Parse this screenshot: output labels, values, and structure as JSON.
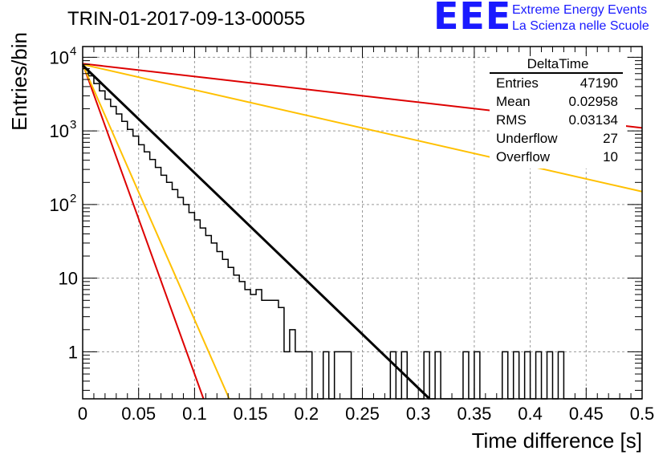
{
  "chart_data": {
    "type": "line",
    "title": "TRIN-01-2017-09-13-00055",
    "xlabel": "Time difference [s]",
    "ylabel": "Entries/bin",
    "xlim": [
      0,
      0.5
    ],
    "ylim": [
      0.23,
      14000
    ],
    "yscale": "log",
    "grid": true,
    "x_ticks": [
      "0",
      "0.05",
      "0.1",
      "0.15",
      "0.2",
      "0.25",
      "0.3",
      "0.35",
      "0.4",
      "0.45",
      "0.5"
    ],
    "y_ticks": [
      {
        "base": "10",
        "exp": "4",
        "value": 10000
      },
      {
        "base": "10",
        "exp": "3",
        "value": 1000
      },
      {
        "base": "10",
        "exp": "2",
        "value": 100
      },
      {
        "base": "10",
        "exp": "",
        "value": 10
      },
      {
        "base": "1",
        "exp": "",
        "value": 1
      }
    ],
    "histogram": {
      "name": "DeltaTime",
      "bin_width": 0.005,
      "values": [
        7000,
        5600,
        4400,
        3500,
        2700,
        2150,
        1700,
        1350,
        1050,
        850,
        650,
        520,
        410,
        320,
        250,
        200,
        160,
        125,
        100,
        78,
        62,
        48,
        38,
        30,
        23,
        18,
        14,
        11,
        9,
        7,
        6,
        7,
        5,
        5,
        5,
        4,
        1,
        2,
        1,
        1,
        1,
        0,
        0,
        1,
        0,
        1,
        1,
        1,
        0,
        0,
        0,
        0,
        0,
        0,
        0,
        1,
        0,
        1,
        0,
        0,
        0,
        1,
        0,
        1,
        0,
        0,
        0,
        0,
        1,
        0,
        1,
        0,
        0,
        0,
        0,
        1,
        0,
        1,
        0,
        1,
        0,
        1,
        0,
        1,
        0,
        1,
        0,
        0,
        0,
        0,
        0,
        0,
        0,
        0,
        0,
        0,
        0,
        0,
        0,
        0
      ]
    },
    "series": [
      {
        "color": "#000000",
        "x": [
          0,
          0.31
        ],
        "y": [
          7800,
          0.23
        ]
      },
      {
        "color": "#dd0000",
        "x": [
          0,
          0.5
        ],
        "y": [
          8200,
          1100
        ]
      },
      {
        "color": "#ffc000",
        "x": [
          0,
          0.5
        ],
        "y": [
          8000,
          150
        ]
      },
      {
        "color": "#dd0000",
        "x": [
          0,
          0.108
        ],
        "y": [
          8200,
          0.23
        ]
      },
      {
        "color": "#ffc000",
        "x": [
          0,
          0.131
        ],
        "y": [
          8000,
          0.23
        ]
      }
    ]
  },
  "stats": {
    "title": "DeltaTime",
    "rows": [
      {
        "label": "Entries",
        "value": "47190"
      },
      {
        "label": "Mean",
        "value": "0.02958"
      },
      {
        "label": "RMS",
        "value": "0.03134"
      },
      {
        "label": "Underflow",
        "value": "27"
      },
      {
        "label": "Overflow",
        "value": "10"
      }
    ]
  },
  "brand": {
    "logo": "EEE",
    "line1": "Extreme Energy Events",
    "line2": "La Scienza nelle Scuole",
    "color": "#1a1aff"
  }
}
